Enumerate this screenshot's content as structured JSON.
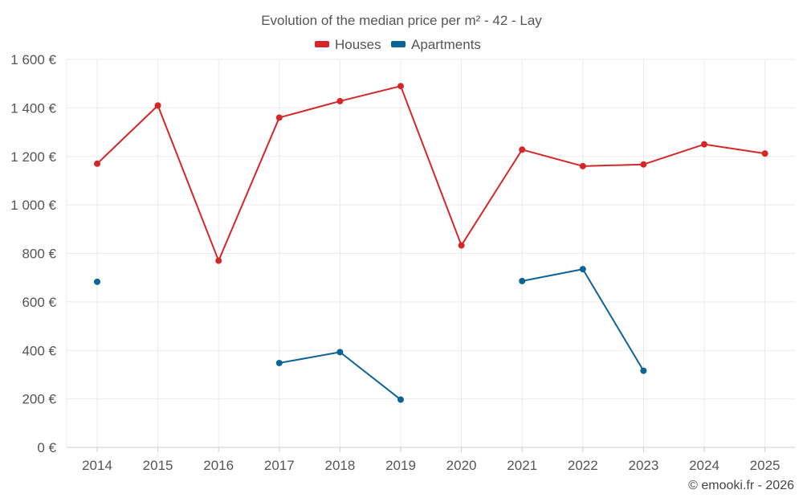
{
  "chart_data": {
    "type": "line",
    "title": "Evolution of the median price per m² - 42 - Lay",
    "categories": [
      "2014",
      "2015",
      "2016",
      "2017",
      "2018",
      "2019",
      "2020",
      "2021",
      "2022",
      "2023",
      "2024",
      "2025"
    ],
    "ylim": [
      0,
      1600
    ],
    "yticks": [
      0,
      200,
      400,
      600,
      800,
      1000,
      1200,
      1400,
      1600
    ],
    "ytick_labels": [
      "0 €",
      "200 €",
      "400 €",
      "600 €",
      "800 €",
      "1 000 €",
      "1 200 €",
      "1 400 €",
      "1 600 €"
    ],
    "grid": true,
    "legend_position": "top-center",
    "series": [
      {
        "name": "Houses",
        "color": "#d62728",
        "values": [
          1170,
          1410,
          770,
          1360,
          1428,
          1490,
          833,
          1228,
          1160,
          1167,
          1250,
          1212
        ]
      },
      {
        "name": "Apartments",
        "color": "#0b6396",
        "values": [
          683,
          null,
          null,
          348,
          393,
          197,
          null,
          686,
          735,
          316,
          null,
          null
        ]
      }
    ],
    "credit": "© emooki.fr - 2026"
  }
}
